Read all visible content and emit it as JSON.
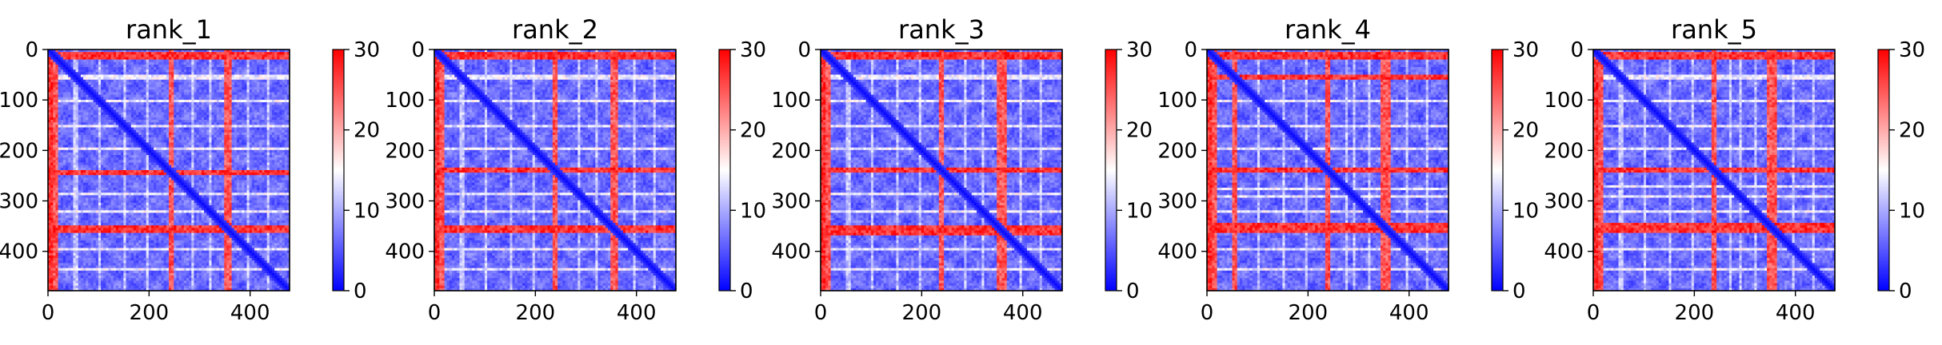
{
  "chart_data": {
    "type": "heatmap",
    "colormap": {
      "name": "bwr",
      "low": "#0000ff",
      "mid": "#ffffff",
      "high": "#ff0000"
    },
    "grid": false,
    "panels": [
      {
        "title": "rank_1",
        "xlim": [
          0,
          478
        ],
        "ylim": [
          478,
          0
        ],
        "xticks": [
          0,
          200,
          400
        ],
        "yticks": [
          0,
          100,
          200,
          300,
          400
        ],
        "colorbar": {
          "range": [
            0,
            30
          ],
          "ticks": [
            0,
            10,
            20,
            30
          ]
        },
        "features": {
          "hot_bands": [
            [
              5,
              18
            ],
            [
              238,
              247
            ],
            [
              348,
              365
            ]
          ],
          "light_bands": [
            [
              52,
              60
            ],
            [
              100,
              106
            ],
            [
              148,
              154
            ],
            [
              192,
              197
            ],
            [
              283,
              289
            ],
            [
              317,
              322
            ],
            [
              395,
              400
            ],
            [
              432,
              437
            ]
          ],
          "hot_cols": [
            [
              0,
              8
            ]
          ],
          "diag_break": 355
        }
      },
      {
        "title": "rank_2",
        "xlim": [
          0,
          478
        ],
        "ylim": [
          478,
          0
        ],
        "xticks": [
          0,
          200,
          400
        ],
        "yticks": [
          0,
          100,
          200,
          300,
          400
        ],
        "colorbar": {
          "range": [
            0,
            30
          ],
          "ticks": [
            0,
            10,
            20,
            30
          ]
        },
        "features": {
          "hot_bands": [
            [
              5,
              18
            ],
            [
              236,
              246
            ],
            [
              347,
              365
            ]
          ],
          "light_bands": [
            [
              52,
              60
            ],
            [
              100,
              106
            ],
            [
              150,
              156
            ],
            [
              192,
              197
            ],
            [
              284,
              290
            ],
            [
              317,
              322
            ],
            [
              395,
              400
            ],
            [
              432,
              437
            ]
          ],
          "hot_cols": [
            [
              0,
              8
            ]
          ],
          "diag_break": 355
        }
      },
      {
        "title": "rank_3",
        "xlim": [
          0,
          478
        ],
        "ylim": [
          478,
          0
        ],
        "xticks": [
          0,
          200,
          400
        ],
        "yticks": [
          0,
          100,
          200,
          300,
          400
        ],
        "colorbar": {
          "range": [
            0,
            30
          ],
          "ticks": [
            0,
            10,
            20,
            30
          ]
        },
        "features": {
          "hot_bands": [
            [
              5,
              18
            ],
            [
              236,
              246
            ],
            [
              347,
              368
            ]
          ],
          "light_bands": [
            [
              52,
              60
            ],
            [
              100,
              106
            ],
            [
              150,
              156
            ],
            [
              192,
              197
            ],
            [
              284,
              290
            ],
            [
              317,
              322
            ],
            [
              395,
              400
            ],
            [
              432,
              437
            ]
          ],
          "hot_cols": [
            [
              0,
              8
            ]
          ],
          "diag_break": 355
        }
      },
      {
        "title": "rank_4",
        "xlim": [
          0,
          478
        ],
        "ylim": [
          478,
          0
        ],
        "xticks": [
          0,
          200,
          400
        ],
        "yticks": [
          0,
          100,
          200,
          300,
          400
        ],
        "colorbar": {
          "range": [
            0,
            30
          ],
          "ticks": [
            0,
            10,
            20,
            30
          ]
        },
        "features": {
          "hot_bands": [
            [
              5,
              18
            ],
            [
              52,
              62
            ],
            [
              234,
              244
            ],
            [
              345,
              365
            ]
          ],
          "light_bands": [
            [
              100,
              106
            ],
            [
              150,
              156
            ],
            [
              192,
              197
            ],
            [
              272,
              278
            ],
            [
              290,
              296
            ],
            [
              317,
              322
            ],
            [
              395,
              400
            ],
            [
              432,
              437
            ]
          ],
          "hot_cols": [
            [
              0,
              12
            ]
          ],
          "diag_break": 355
        }
      },
      {
        "title": "rank_5",
        "xlim": [
          0,
          478
        ],
        "ylim": [
          478,
          0
        ],
        "xticks": [
          0,
          200,
          400
        ],
        "yticks": [
          0,
          100,
          200,
          300,
          400
        ],
        "colorbar": {
          "range": [
            0,
            30
          ],
          "ticks": [
            0,
            10,
            20,
            30
          ]
        },
        "features": {
          "hot_bands": [
            [
              5,
              18
            ],
            [
              232,
              244
            ],
            [
              345,
              365
            ]
          ],
          "light_bands": [
            [
              52,
              60
            ],
            [
              100,
              106
            ],
            [
              150,
              156
            ],
            [
              192,
              197
            ],
            [
              270,
              276
            ],
            [
              290,
              296
            ],
            [
              317,
              322
            ],
            [
              395,
              400
            ],
            [
              432,
              437
            ]
          ],
          "hot_cols": [
            [
              0,
              10
            ]
          ],
          "diag_break": 355
        }
      }
    ]
  }
}
